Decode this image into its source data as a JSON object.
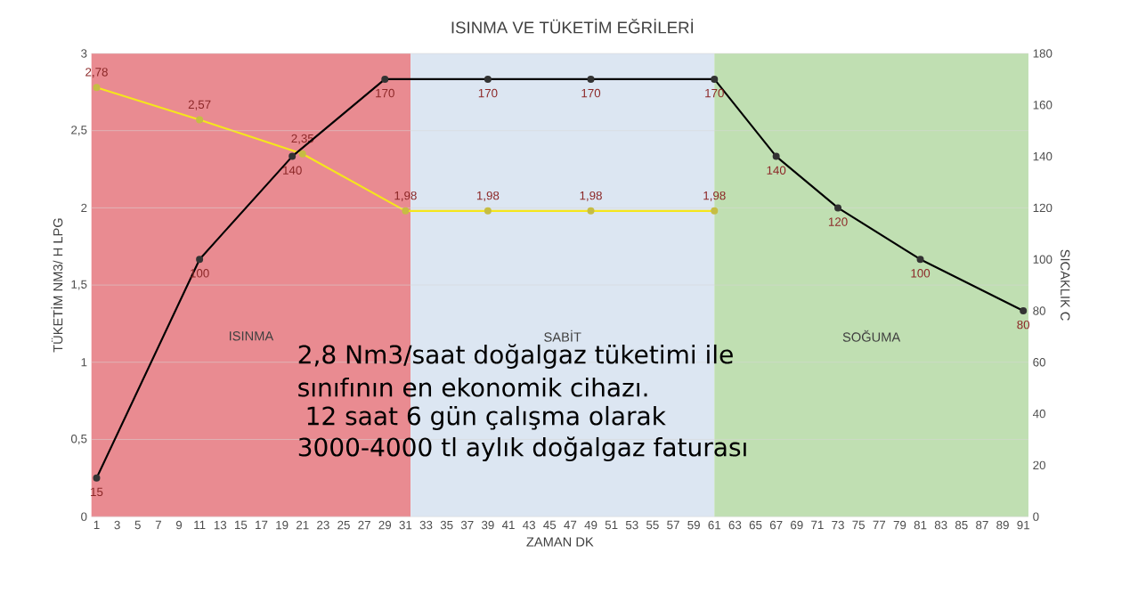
{
  "chart_data": {
    "type": "line",
    "title": "ISINMA VE TÜKETİM EĞRİLERİ",
    "xlabel": "ZAMAN DK",
    "ylabel": "TÜKETİM NM3/ H  LPG",
    "y2label": "SICAKLIK C",
    "xlim": [
      0.5,
      91.5
    ],
    "xticks": [
      1,
      3,
      5,
      7,
      9,
      11,
      13,
      15,
      17,
      19,
      21,
      23,
      25,
      27,
      29,
      31,
      33,
      35,
      37,
      39,
      41,
      43,
      45,
      47,
      49,
      51,
      53,
      55,
      57,
      59,
      61,
      63,
      65,
      67,
      69,
      71,
      73,
      75,
      77,
      79,
      81,
      83,
      85,
      87,
      89,
      91
    ],
    "ylim": [
      0,
      3
    ],
    "yticks": [
      0,
      {
        "value": 0.5,
        "label": "0,5"
      },
      1,
      {
        "value": 1.5,
        "label": "1,5"
      },
      2,
      {
        "value": 2.5,
        "label": "2,5"
      },
      3
    ],
    "y2lim": [
      0,
      180
    ],
    "y2ticks": [
      0,
      20,
      40,
      60,
      80,
      100,
      120,
      140,
      160,
      180
    ],
    "grid": "y",
    "marker": "circle",
    "line_style": "solid",
    "series": [
      {
        "color": "#f5e61c",
        "x": [
          1,
          11,
          21,
          31,
          39,
          49,
          61
        ],
        "values": [
          2.78,
          2.57,
          2.35,
          1.98,
          1.98,
          1.98,
          1.98
        ],
        "value_labels": [
          "2,78",
          "2,57",
          "2,35",
          "1,98",
          "1,98",
          "1,98",
          "1,98"
        ]
      },
      {
        "color": "#000000",
        "axis": "y2",
        "x": [
          1,
          11,
          20,
          29,
          39,
          49,
          61,
          67,
          73,
          81,
          91
        ],
        "values": [
          15,
          100,
          140,
          170,
          170,
          170,
          170,
          140,
          120,
          100,
          80
        ],
        "value_labels": [
          "15",
          "100",
          "140",
          "170",
          "170",
          "170",
          "170",
          "140",
          "120",
          "100",
          "80"
        ]
      }
    ],
    "bands": [
      {
        "axis": "x",
        "from": 0.5,
        "to": 31.5,
        "label": "ISINMA",
        "color": "#e98b91"
      },
      {
        "axis": "x",
        "from": 31.5,
        "to": 61,
        "label": "SABİT",
        "color": "#dce6f2"
      },
      {
        "axis": "x",
        "from": 61,
        "to": 91.5,
        "label": "SOĞUMA",
        "color": "#c0dfb2"
      }
    ],
    "annotations": [
      "2,8 Nm3/saat doğalgaz tüketimi ile",
      "sınıfının en ekonomik cihazı.",
      " 12 saat 6 gün çalışma olarak",
      "3000-4000 tl aylık doğalgaz faturası"
    ]
  }
}
